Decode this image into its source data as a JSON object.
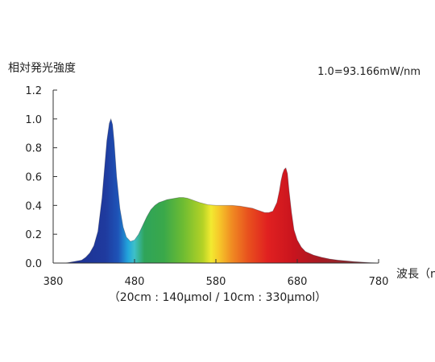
{
  "chart_data": {
    "type": "area",
    "title": "",
    "ylabel": "相対発光強度",
    "xlabel": "波長（nm）",
    "reference_note": "1.0=93.166mW/nm",
    "footnote": "（20cm : 140μmol / 10cm : 330μmol）",
    "xlim": [
      380,
      780
    ],
    "ylim": [
      0,
      1.2
    ],
    "x_ticks": [
      380,
      480,
      580,
      680,
      780
    ],
    "x_tick_labels": [
      "380",
      "480",
      "580",
      "680",
      "780"
    ],
    "y_ticks": [
      0,
      0.2,
      0.4,
      0.6,
      0.8,
      1.0,
      1.2
    ],
    "y_tick_labels": [
      "0.0",
      "0.2",
      "0.4",
      "0.6",
      "0.8",
      "1.0",
      "1.2"
    ],
    "grid": false,
    "fill": "visible-spectrum gradient",
    "series": [
      {
        "x": [
          380,
          395,
          405,
          415,
          420,
          425,
          430,
          435,
          440,
          443,
          446,
          449,
          451,
          453,
          455,
          458,
          462,
          466,
          470,
          475,
          480,
          485,
          490,
          495,
          500,
          505,
          510,
          515,
          520,
          525,
          530,
          535,
          540,
          545,
          550,
          555,
          560,
          570,
          580,
          590,
          600,
          610,
          620,
          625,
          630,
          635,
          640,
          645,
          650,
          655,
          658,
          660,
          662,
          664,
          666,
          668,
          670,
          673,
          676,
          680,
          685,
          690,
          700,
          710,
          720,
          730,
          740,
          750,
          760,
          770,
          780
        ],
        "y": [
          0.0,
          0.0,
          0.01,
          0.02,
          0.04,
          0.07,
          0.12,
          0.22,
          0.45,
          0.65,
          0.85,
          0.97,
          1.0,
          0.96,
          0.84,
          0.6,
          0.38,
          0.25,
          0.18,
          0.15,
          0.16,
          0.2,
          0.26,
          0.32,
          0.37,
          0.4,
          0.42,
          0.43,
          0.44,
          0.445,
          0.45,
          0.455,
          0.455,
          0.45,
          0.44,
          0.43,
          0.42,
          0.405,
          0.4,
          0.4,
          0.4,
          0.395,
          0.385,
          0.38,
          0.37,
          0.36,
          0.35,
          0.35,
          0.36,
          0.42,
          0.5,
          0.57,
          0.62,
          0.65,
          0.66,
          0.62,
          0.5,
          0.35,
          0.23,
          0.16,
          0.11,
          0.08,
          0.055,
          0.04,
          0.028,
          0.02,
          0.015,
          0.01,
          0.006,
          0.003,
          0.0
        ]
      }
    ]
  }
}
